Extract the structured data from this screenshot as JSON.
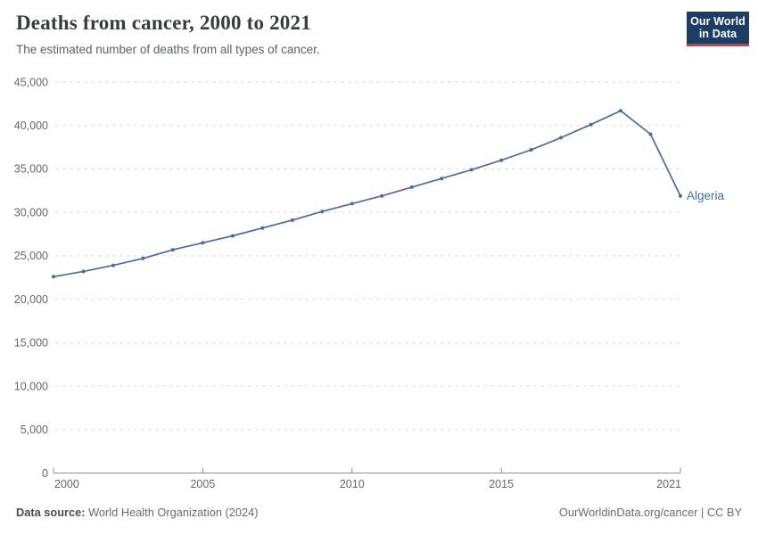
{
  "header": {
    "title": "Deaths from cancer, 2000 to 2021",
    "subtitle": "The estimated number of deaths from all types of cancer.",
    "logo": {
      "line1": "Our World",
      "line2": "in Data"
    }
  },
  "footer": {
    "source_label": "Data source:",
    "source_value": " World Health Organization (2024)",
    "link_text": "OurWorldinData.org/cancer | CC BY"
  },
  "colors": {
    "line": "#4C6A9C",
    "entity_label": "#4C6A9C",
    "grid": "#dedede",
    "axis": "#8f8f8f",
    "tick_label": "#666666",
    "logo_bg": "#1d3d63",
    "logo_accent": "#d93a34"
  },
  "chart_data": {
    "type": "line",
    "title": "Deaths from cancer, 2000 to 2021",
    "subtitle": "The estimated number of deaths from all types of cancer.",
    "xlabel": "",
    "ylabel": "",
    "xlim": [
      2000,
      2021
    ],
    "ylim": [
      0,
      45000
    ],
    "y_ticks": [
      0,
      5000,
      10000,
      15000,
      20000,
      25000,
      30000,
      35000,
      40000,
      45000
    ],
    "x_ticks": [
      2000,
      2005,
      2010,
      2015,
      2021
    ],
    "grid": "horizontal-dashed",
    "legend_position": "end-of-line-label",
    "series": [
      {
        "name": "Algeria",
        "color": "#4C6A9C",
        "x": [
          2000,
          2001,
          2002,
          2003,
          2004,
          2005,
          2006,
          2007,
          2008,
          2009,
          2010,
          2011,
          2012,
          2013,
          2014,
          2015,
          2016,
          2017,
          2018,
          2019,
          2020,
          2021
        ],
        "values": [
          22600,
          23200,
          23900,
          24700,
          25700,
          26500,
          27300,
          28200,
          29100,
          30100,
          31000,
          31900,
          32900,
          33900,
          34900,
          36000,
          37200,
          38600,
          40100,
          41700,
          39000,
          31900
        ]
      }
    ]
  }
}
